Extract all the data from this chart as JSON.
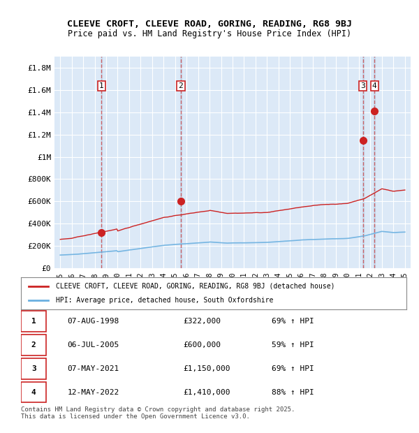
{
  "title_line1": "CLEEVE CROFT, CLEEVE ROAD, GORING, READING, RG8 9BJ",
  "title_line2": "Price paid vs. HM Land Registry's House Price Index (HPI)",
  "xlabel": "",
  "ylabel": "",
  "background_color": "#ffffff",
  "plot_bg_color": "#dce9f7",
  "grid_color": "#ffffff",
  "hpi_color": "#6ab0e0",
  "price_color": "#cc2222",
  "sale_marker_color": "#cc2222",
  "dashed_line_color": "#cc4444",
  "ylim": [
    0,
    1900000
  ],
  "yticks": [
    0,
    200000,
    400000,
    600000,
    800000,
    1000000,
    1200000,
    1400000,
    1600000,
    1800000
  ],
  "ytick_labels": [
    "£0",
    "£200K",
    "£400K",
    "£600K",
    "£800K",
    "£1M",
    "£1.2M",
    "£1.4M",
    "£1.6M",
    "£1.8M"
  ],
  "xlim_start": 1994.5,
  "xlim_end": 2025.5,
  "xtick_years": [
    1995,
    1996,
    1997,
    1998,
    1999,
    2000,
    2001,
    2002,
    2003,
    2004,
    2005,
    2006,
    2007,
    2008,
    2009,
    2010,
    2011,
    2012,
    2013,
    2014,
    2015,
    2016,
    2017,
    2018,
    2019,
    2020,
    2021,
    2022,
    2023,
    2024,
    2025
  ],
  "sales": [
    {
      "num": 1,
      "date": "07-AUG-1998",
      "year": 1998.6,
      "price": 322000,
      "pct": "69%",
      "dir": "↑"
    },
    {
      "num": 2,
      "date": "06-JUL-2005",
      "year": 2005.5,
      "price": 600000,
      "pct": "59%",
      "dir": "↑"
    },
    {
      "num": 3,
      "date": "07-MAY-2021",
      "year": 2021.35,
      "price": 1150000,
      "pct": "69%",
      "dir": "↑"
    },
    {
      "num": 4,
      "date": "12-MAY-2022",
      "year": 2022.35,
      "price": 1410000,
      "pct": "88%",
      "dir": "↑"
    }
  ],
  "legend_label_red": "CLEEVE CROFT, CLEEVE ROAD, GORING, READING, RG8 9BJ (detached house)",
  "legend_label_blue": "HPI: Average price, detached house, South Oxfordshire",
  "footer_text": "Contains HM Land Registry data © Crown copyright and database right 2025.\nThis data is licensed under the Open Government Licence v3.0.",
  "table_rows": [
    [
      "1",
      "07-AUG-1998",
      "£322,000",
      "69% ↑ HPI"
    ],
    [
      "2",
      "06-JUL-2005",
      "£600,000",
      "59% ↑ HPI"
    ],
    [
      "3",
      "07-MAY-2021",
      "£1,150,000",
      "69% ↑ HPI"
    ],
    [
      "4",
      "12-MAY-2022",
      "£1,410,000",
      "88% ↑ HPI"
    ]
  ]
}
